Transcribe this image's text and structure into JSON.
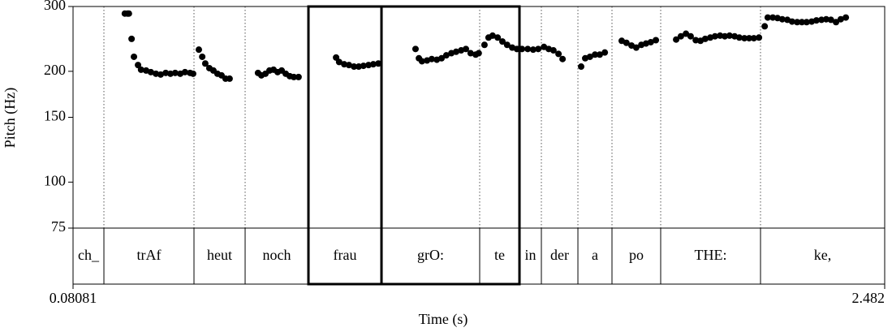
{
  "chart_data": {
    "type": "scatter",
    "xlabel": "Time (s)",
    "ylabel": "Pitch (Hz)",
    "color": "#000000",
    "log_y": true,
    "xlim": [
      0.08081,
      2.482
    ],
    "xticks": [
      0.08081,
      2.482
    ],
    "ylim": [
      75,
      300
    ],
    "yticks": [
      75,
      100,
      150,
      200,
      300
    ],
    "x": [
      0.234,
      0.242,
      0.246,
      0.254,
      0.261,
      0.273,
      0.282,
      0.297,
      0.311,
      0.326,
      0.34,
      0.355,
      0.369,
      0.383,
      0.398,
      0.412,
      0.427,
      0.436,
      0.453,
      0.463,
      0.472,
      0.484,
      0.496,
      0.508,
      0.52,
      0.532,
      0.544,
      0.628,
      0.638,
      0.65,
      0.662,
      0.674,
      0.686,
      0.698,
      0.71,
      0.722,
      0.734,
      0.748,
      0.859,
      0.868,
      0.883,
      0.897,
      0.912,
      0.926,
      0.94,
      0.955,
      0.969,
      0.984,
      1.094,
      1.104,
      1.113,
      1.128,
      1.142,
      1.157,
      1.171,
      1.185,
      1.2,
      1.214,
      1.229,
      1.243,
      1.257,
      1.272,
      1.281,
      1.298,
      1.31,
      1.322,
      1.337,
      1.351,
      1.365,
      1.38,
      1.394,
      1.409,
      1.426,
      1.442,
      1.457,
      1.474,
      1.488,
      1.502,
      1.517,
      1.529,
      1.584,
      1.596,
      1.61,
      1.625,
      1.639,
      1.654,
      1.704,
      1.718,
      1.733,
      1.747,
      1.762,
      1.776,
      1.79,
      1.805,
      1.865,
      1.879,
      1.894,
      1.908,
      1.923,
      1.937,
      1.951,
      1.966,
      1.98,
      1.995,
      2.009,
      2.023,
      2.038,
      2.052,
      2.067,
      2.081,
      2.095,
      2.11,
      2.127,
      2.136,
      2.151,
      2.165,
      2.179,
      2.194,
      2.208,
      2.223,
      2.237,
      2.251,
      2.266,
      2.28,
      2.295,
      2.309,
      2.323,
      2.338,
      2.352,
      2.367
    ],
    "values": [
      287,
      287,
      287,
      245,
      219,
      208,
      202,
      201,
      199,
      197,
      196,
      198,
      197,
      198,
      197,
      199,
      198,
      197,
      229,
      219,
      210,
      204,
      201,
      197,
      195,
      191,
      191,
      198,
      195,
      197,
      201,
      202,
      199,
      201,
      197,
      194,
      193,
      193,
      218,
      212,
      209,
      208,
      206,
      206,
      207,
      208,
      209,
      210,
      230,
      217,
      213,
      214,
      216,
      215,
      217,
      221,
      224,
      226,
      228,
      230,
      224,
      222,
      224,
      236,
      247,
      250,
      247,
      241,
      236,
      232,
      230,
      230,
      230,
      229,
      230,
      233,
      230,
      228,
      223,
      216,
      206,
      217,
      219,
      222,
      222,
      225,
      242,
      239,
      235,
      232,
      236,
      238,
      240,
      243,
      244,
      249,
      253,
      249,
      243,
      242,
      245,
      247,
      249,
      250,
      249,
      250,
      249,
      247,
      246,
      246,
      246,
      247,
      265,
      280,
      280,
      279,
      277,
      276,
      273,
      272,
      272,
      272,
      273,
      275,
      276,
      277,
      276,
      272,
      277,
      280
    ],
    "tier": {
      "boundaries": [
        0.08081,
        0.1721,
        0.4386,
        0.5899,
        0.7772,
        0.9933,
        1.2838,
        1.4015,
        1.4663,
        1.5744,
        1.6752,
        1.8193,
        2.1146,
        2.482
      ],
      "labels": [
        "ch_",
        "trAf",
        "heut",
        "noch",
        "frau",
        "grO:",
        "te",
        "in",
        "der",
        "a",
        "po",
        "THE:",
        "ke,"
      ]
    }
  }
}
